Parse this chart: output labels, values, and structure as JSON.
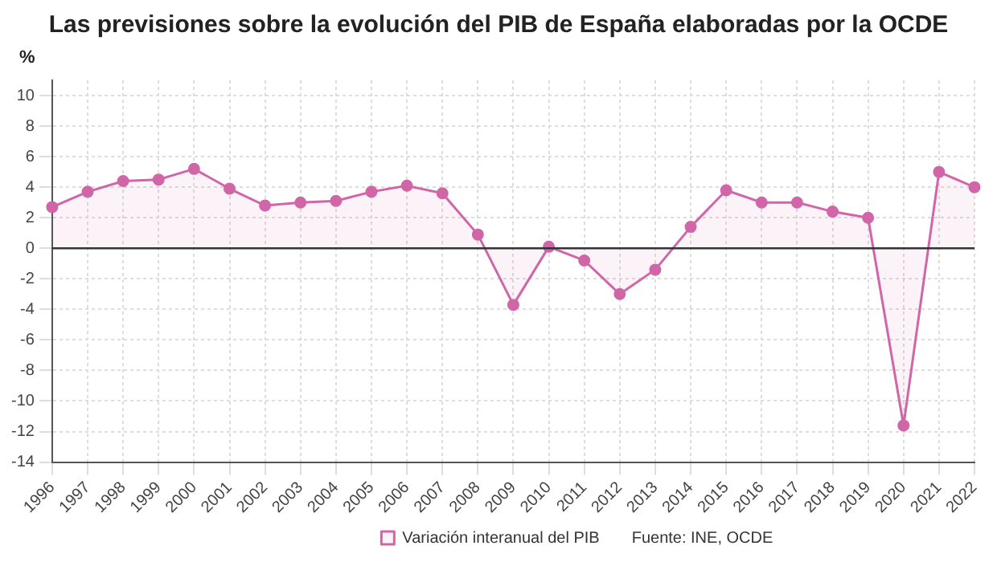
{
  "chart_data": {
    "type": "area",
    "title": "Las previsiones sobre la evolución del PIB de España elaboradas por la OCDE",
    "ylabel": "%",
    "categories": [
      "1996",
      "1997",
      "1998",
      "1999",
      "2000",
      "2001",
      "2002",
      "2003",
      "2004",
      "2005",
      "2006",
      "2007",
      "2008",
      "2009",
      "2010",
      "2011",
      "2012",
      "2013",
      "2014",
      "2015",
      "2016",
      "2017",
      "2018",
      "2019",
      "2020",
      "2021",
      "2022"
    ],
    "series": [
      {
        "name": "Variación interanual del PIB",
        "color": "#d066a8",
        "values": [
          2.7,
          3.7,
          4.4,
          4.5,
          5.2,
          3.9,
          2.8,
          3.0,
          3.1,
          3.7,
          4.1,
          3.6,
          0.9,
          -3.7,
          0.1,
          -0.8,
          -3.0,
          -1.4,
          1.4,
          3.8,
          3.0,
          3.0,
          2.4,
          2.0,
          -11.6,
          5.0,
          4.0
        ]
      }
    ],
    "ylim": [
      -14,
      11
    ],
    "yticks": [
      -14,
      -12,
      -10,
      -8,
      -6,
      -4,
      -2,
      0,
      2,
      4,
      6,
      8,
      10
    ],
    "ref_lines": [
      {
        "axis": "y",
        "value": 0,
        "color": "#333333"
      }
    ],
    "annotations": [
      "Fuente: INE, OCDE"
    ],
    "grid": true,
    "legend": "bottom",
    "marker": "circle"
  }
}
